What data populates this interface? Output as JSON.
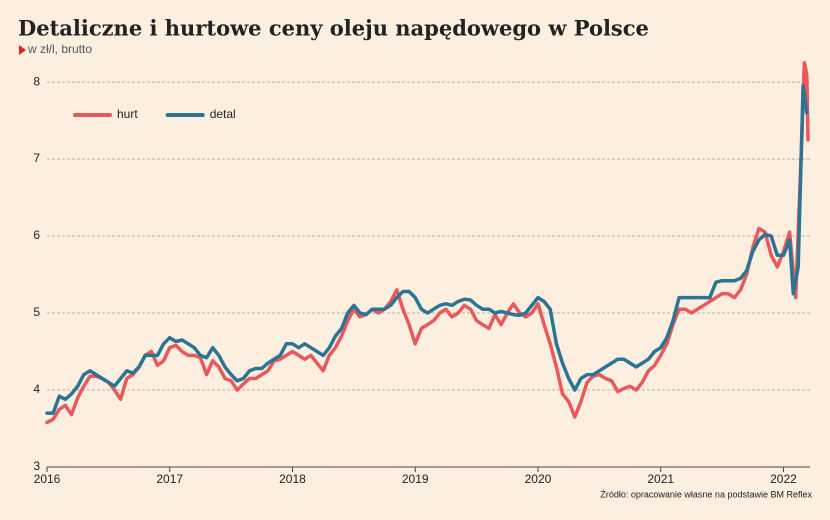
{
  "chart_data": {
    "type": "line",
    "title": "Detaliczne i hurtowe ceny oleju napędowego w Polsce",
    "subtitle": "w zł/l, brutto",
    "source": "Źródło: opracowanie własne na podstawie BM Reflex",
    "xlim": [
      2016,
      2022.2
    ],
    "xticks": [
      2016,
      2017,
      2018,
      2019,
      2020,
      2021,
      2022
    ],
    "ylim": [
      3,
      8.3
    ],
    "yticks": [
      3,
      4,
      5,
      6,
      7,
      8
    ],
    "grid": true,
    "legend": "upper-left",
    "series": [
      {
        "name": "hurt",
        "color": "#e8585c",
        "x": [
          2016.0,
          2016.05,
          2016.1,
          2016.15,
          2016.2,
          2016.25,
          2016.3,
          2016.35,
          2016.4,
          2016.45,
          2016.5,
          2016.55,
          2016.6,
          2016.65,
          2016.7,
          2016.75,
          2016.8,
          2016.85,
          2016.9,
          2016.95,
          2017.0,
          2017.05,
          2017.1,
          2017.15,
          2017.2,
          2017.25,
          2017.3,
          2017.35,
          2017.4,
          2017.45,
          2017.5,
          2017.55,
          2017.6,
          2017.65,
          2017.7,
          2017.75,
          2017.8,
          2017.85,
          2017.9,
          2017.95,
          2018.0,
          2018.05,
          2018.1,
          2018.15,
          2018.2,
          2018.25,
          2018.3,
          2018.35,
          2018.4,
          2018.45,
          2018.5,
          2018.55,
          2018.6,
          2018.65,
          2018.7,
          2018.75,
          2018.8,
          2018.85,
          2018.9,
          2018.95,
          2019.0,
          2019.05,
          2019.1,
          2019.15,
          2019.2,
          2019.25,
          2019.3,
          2019.35,
          2019.4,
          2019.45,
          2019.5,
          2019.55,
          2019.6,
          2019.65,
          2019.7,
          2019.75,
          2019.8,
          2019.85,
          2019.9,
          2019.95,
          2020.0,
          2020.05,
          2020.1,
          2020.15,
          2020.2,
          2020.25,
          2020.3,
          2020.35,
          2020.4,
          2020.45,
          2020.5,
          2020.55,
          2020.6,
          2020.65,
          2020.7,
          2020.75,
          2020.8,
          2020.85,
          2020.9,
          2020.95,
          2021.0,
          2021.05,
          2021.1,
          2021.15,
          2021.2,
          2021.25,
          2021.3,
          2021.35,
          2021.4,
          2021.45,
          2021.5,
          2021.55,
          2021.6,
          2021.65,
          2021.7,
          2021.75,
          2021.8,
          2021.85,
          2021.9,
          2021.95,
          2022.0,
          2022.05,
          2022.1,
          2022.15,
          2022.17,
          2022.19,
          2022.2
        ],
        "values": [
          3.58,
          3.62,
          3.75,
          3.8,
          3.68,
          3.9,
          4.05,
          4.18,
          4.18,
          4.15,
          4.1,
          4.0,
          3.88,
          4.15,
          4.2,
          4.3,
          4.45,
          4.5,
          4.32,
          4.38,
          4.55,
          4.58,
          4.5,
          4.45,
          4.45,
          4.42,
          4.2,
          4.38,
          4.3,
          4.15,
          4.12,
          4.0,
          4.08,
          4.15,
          4.15,
          4.2,
          4.25,
          4.38,
          4.4,
          4.45,
          4.5,
          4.45,
          4.4,
          4.45,
          4.35,
          4.25,
          4.45,
          4.55,
          4.7,
          4.9,
          5.05,
          4.95,
          4.98,
          5.05,
          5.0,
          5.05,
          5.15,
          5.3,
          5.05,
          4.85,
          4.6,
          4.8,
          4.85,
          4.9,
          5.0,
          5.05,
          4.95,
          5.0,
          5.1,
          5.05,
          4.9,
          4.85,
          4.8,
          4.98,
          4.85,
          5.0,
          5.12,
          5.0,
          4.95,
          5.0,
          5.12,
          4.85,
          4.6,
          4.3,
          3.95,
          3.85,
          3.65,
          3.85,
          4.1,
          4.18,
          4.2,
          4.15,
          4.12,
          3.98,
          4.02,
          4.05,
          4.0,
          4.1,
          4.25,
          4.32,
          4.45,
          4.6,
          4.85,
          5.05,
          5.05,
          5.0,
          5.05,
          5.1,
          5.15,
          5.2,
          5.25,
          5.25,
          5.2,
          5.3,
          5.5,
          5.85,
          6.1,
          6.05,
          5.75,
          5.6,
          5.8,
          6.05,
          5.2,
          7.3,
          8.25,
          8.1,
          7.25
        ]
      },
      {
        "name": "detal",
        "color": "#2b7494",
        "x": [
          2016.0,
          2016.05,
          2016.1,
          2016.15,
          2016.2,
          2016.25,
          2016.3,
          2016.35,
          2016.4,
          2016.45,
          2016.5,
          2016.55,
          2016.6,
          2016.65,
          2016.7,
          2016.75,
          2016.8,
          2016.85,
          2016.9,
          2016.95,
          2017.0,
          2017.05,
          2017.1,
          2017.15,
          2017.2,
          2017.25,
          2017.3,
          2017.35,
          2017.4,
          2017.45,
          2017.5,
          2017.55,
          2017.6,
          2017.65,
          2017.7,
          2017.75,
          2017.8,
          2017.85,
          2017.9,
          2017.95,
          2018.0,
          2018.05,
          2018.1,
          2018.15,
          2018.2,
          2018.25,
          2018.3,
          2018.35,
          2018.4,
          2018.45,
          2018.5,
          2018.55,
          2018.6,
          2018.65,
          2018.7,
          2018.75,
          2018.8,
          2018.85,
          2018.9,
          2018.95,
          2019.0,
          2019.05,
          2019.1,
          2019.15,
          2019.2,
          2019.25,
          2019.3,
          2019.35,
          2019.4,
          2019.45,
          2019.5,
          2019.55,
          2019.6,
          2019.65,
          2019.7,
          2019.75,
          2019.8,
          2019.85,
          2019.9,
          2019.95,
          2020.0,
          2020.05,
          2020.1,
          2020.15,
          2020.2,
          2020.25,
          2020.3,
          2020.35,
          2020.4,
          2020.45,
          2020.5,
          2020.55,
          2020.6,
          2020.65,
          2020.7,
          2020.75,
          2020.8,
          2020.85,
          2020.9,
          2020.95,
          2021.0,
          2021.05,
          2021.1,
          2021.15,
          2021.2,
          2021.25,
          2021.3,
          2021.35,
          2021.4,
          2021.45,
          2021.5,
          2021.55,
          2021.6,
          2021.65,
          2021.7,
          2021.75,
          2021.8,
          2021.85,
          2021.9,
          2021.95,
          2022.0,
          2022.05,
          2022.08,
          2022.12,
          2022.16,
          2022.19
        ],
        "values": [
          3.7,
          3.7,
          3.92,
          3.88,
          3.95,
          4.05,
          4.2,
          4.25,
          4.2,
          4.15,
          4.1,
          4.05,
          4.15,
          4.25,
          4.22,
          4.3,
          4.45,
          4.45,
          4.45,
          4.6,
          4.68,
          4.63,
          4.65,
          4.6,
          4.55,
          4.45,
          4.42,
          4.55,
          4.45,
          4.3,
          4.2,
          4.12,
          4.15,
          4.25,
          4.28,
          4.28,
          4.35,
          4.4,
          4.45,
          4.6,
          4.6,
          4.55,
          4.6,
          4.55,
          4.5,
          4.45,
          4.55,
          4.7,
          4.8,
          5.0,
          5.1,
          5.0,
          4.98,
          5.05,
          5.05,
          5.05,
          5.1,
          5.2,
          5.28,
          5.28,
          5.2,
          5.05,
          5.0,
          5.05,
          5.1,
          5.12,
          5.1,
          5.15,
          5.18,
          5.17,
          5.1,
          5.05,
          5.05,
          5.0,
          5.02,
          5.0,
          4.98,
          4.97,
          5.0,
          5.1,
          5.2,
          5.15,
          5.05,
          4.6,
          4.35,
          4.15,
          4.0,
          4.15,
          4.2,
          4.2,
          4.25,
          4.3,
          4.35,
          4.4,
          4.4,
          4.35,
          4.3,
          4.35,
          4.4,
          4.5,
          4.55,
          4.68,
          4.9,
          5.2,
          5.2,
          5.2,
          5.2,
          5.2,
          5.2,
          5.4,
          5.42,
          5.42,
          5.42,
          5.45,
          5.55,
          5.8,
          5.95,
          6.02,
          6.0,
          5.75,
          5.75,
          5.95,
          5.25,
          5.6,
          7.95,
          7.6
        ]
      }
    ]
  }
}
